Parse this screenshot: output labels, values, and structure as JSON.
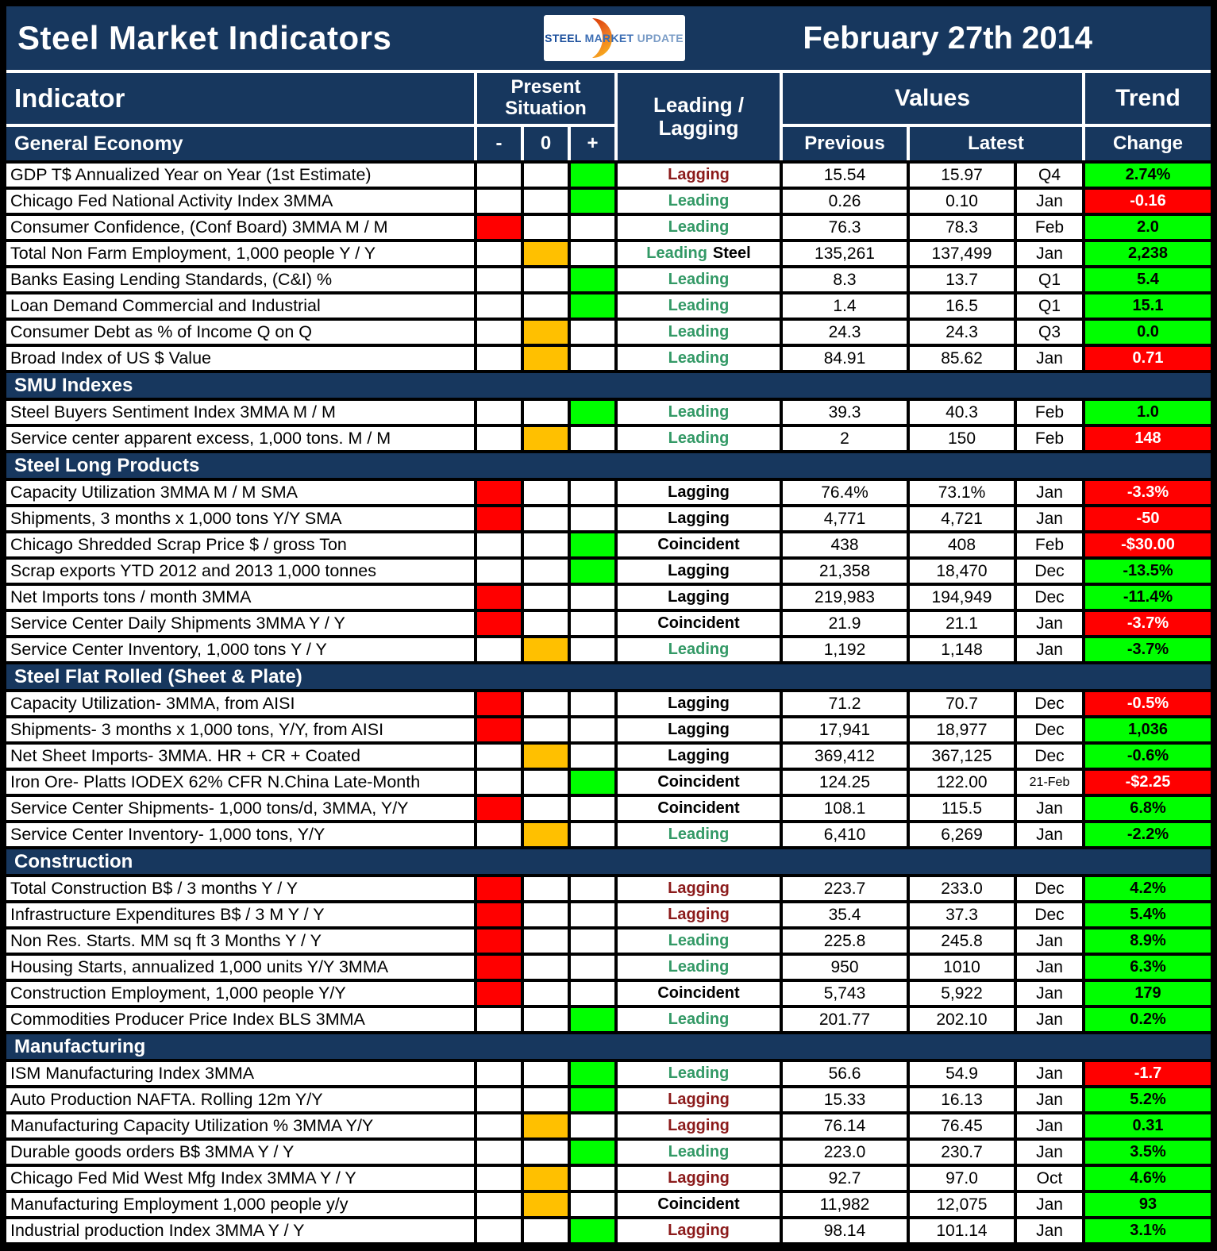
{
  "header": {
    "title": "Steel Market Indicators",
    "date": "February 27th 2014",
    "logo": {
      "steel": "STEEL",
      "market": "MARKET",
      "update": "UPDATE"
    }
  },
  "columns": {
    "indicator": "Indicator",
    "present_situation": "Present Situation",
    "minus": "-",
    "zero": "0",
    "plus": "+",
    "leading_lagging": "Leading / Lagging",
    "values": "Values",
    "previous": "Previous",
    "latest": "Latest",
    "trend": "Trend",
    "change": "Change"
  },
  "colors": {
    "navy": "#17375E",
    "grid": "#000000",
    "positive_cell": "#00FF00",
    "negative_cell": "#FF0000",
    "neutral_cell": "#FFC000",
    "leading_text": "#339966",
    "lagging_text": "#8B1A1A",
    "coincident_text": "#000000"
  },
  "sections": [
    {
      "name": "General Economy",
      "rows": [
        {
          "indicator": "GDP T$ Annualized Year on Year (1st Estimate)",
          "situation": "+",
          "type": "Lagging",
          "type_color": "maroon",
          "previous": "15.54",
          "latest": "15.97",
          "period": "Q4",
          "change": "2.74%",
          "change_color": "green"
        },
        {
          "indicator": "Chicago Fed National Activity Index 3MMA",
          "situation": "+",
          "type": "Leading",
          "type_color": "green",
          "previous": "0.26",
          "latest": "0.10",
          "period": "Jan",
          "change": "-0.16",
          "change_color": "red"
        },
        {
          "indicator": "Consumer Confidence, (Conf Board) 3MMA M / M",
          "situation": "-",
          "type": "Leading",
          "type_color": "green",
          "previous": "76.3",
          "latest": "78.3",
          "period": "Feb",
          "change": "2.0",
          "change_color": "green"
        },
        {
          "indicator": "Total Non Farm Employment, 1,000 people Y / Y",
          "situation": "0",
          "type": "Leading",
          "type_suffix": "Steel",
          "type_color": "green",
          "previous": "135,261",
          "latest": "137,499",
          "period": "Jan",
          "change": "2,238",
          "change_color": "green"
        },
        {
          "indicator": "Banks Easing Lending Standards, (C&I) %",
          "situation": "+",
          "type": "Leading",
          "type_color": "green",
          "previous": "8.3",
          "latest": "13.7",
          "period": "Q1",
          "change": "5.4",
          "change_color": "green"
        },
        {
          "indicator": "Loan Demand Commercial and Industrial",
          "situation": "+",
          "type": "Leading",
          "type_color": "green",
          "previous": "1.4",
          "latest": "16.5",
          "period": "Q1",
          "change": "15.1",
          "change_color": "green"
        },
        {
          "indicator": "Consumer Debt as % of Income Q on Q",
          "situation": "0",
          "type": "Leading",
          "type_color": "green",
          "previous": "24.3",
          "latest": "24.3",
          "period": "Q3",
          "change": "0.0",
          "change_color": "green"
        },
        {
          "indicator": "Broad Index of US $ Value",
          "situation": "0",
          "type": "Leading",
          "type_color": "green",
          "previous": "84.91",
          "latest": "85.62",
          "period": "Jan",
          "change": "0.71",
          "change_color": "red"
        }
      ]
    },
    {
      "name": "SMU Indexes",
      "rows": [
        {
          "indicator": "Steel Buyers Sentiment Index 3MMA M / M",
          "situation": "+",
          "type": "Leading",
          "type_color": "green",
          "previous": "39.3",
          "latest": "40.3",
          "period": "Feb",
          "change": "1.0",
          "change_color": "green"
        },
        {
          "indicator": "Service center apparent excess, 1,000 tons. M / M",
          "situation": "0",
          "type": "Leading",
          "type_color": "green",
          "previous": "2",
          "latest": "150",
          "period": "Feb",
          "change": "148",
          "change_color": "red"
        }
      ]
    },
    {
      "name": "Steel Long Products",
      "rows": [
        {
          "indicator": "Capacity Utilization 3MMA  M / M SMA",
          "situation": "-",
          "type": "Lagging",
          "type_color": "black",
          "previous": "76.4%",
          "latest": "73.1%",
          "period": "Jan",
          "change": "-3.3%",
          "change_color": "red"
        },
        {
          "indicator": "Shipments, 3 months x 1,000 tons Y/Y SMA",
          "situation": "-",
          "type": "Lagging",
          "type_color": "black",
          "previous": "4,771",
          "latest": "4,721",
          "period": "Jan",
          "change": "-50",
          "change_color": "red"
        },
        {
          "indicator": "Chicago Shredded Scrap Price $ / gross Ton",
          "situation": "+",
          "type": "Coincident",
          "type_color": "black",
          "previous": "438",
          "latest": "408",
          "period": "Feb",
          "change": "-$30.00",
          "change_color": "red"
        },
        {
          "indicator": "Scrap exports YTD 2012 and 2013 1,000 tonnes",
          "situation": "+",
          "type": "Lagging",
          "type_color": "black",
          "previous": "21,358",
          "latest": "18,470",
          "period": "Dec",
          "change": "-13.5%",
          "change_color": "green"
        },
        {
          "indicator": "Net Imports tons / month 3MMA",
          "situation": "-",
          "type": "Lagging",
          "type_color": "black",
          "previous": "219,983",
          "latest": "194,949",
          "period": "Dec",
          "change": "-11.4%",
          "change_color": "green"
        },
        {
          "indicator": "Service Center Daily Shipments 3MMA Y / Y",
          "situation": "-",
          "type": "Coincident",
          "type_color": "black",
          "previous": "21.9",
          "latest": "21.1",
          "period": "Jan",
          "change": "-3.7%",
          "change_color": "red"
        },
        {
          "indicator": "Service Center Inventory, 1,000 tons Y / Y",
          "situation": "0",
          "type": "Leading",
          "type_color": "green",
          "previous": "1,192",
          "latest": "1,148",
          "period": "Jan",
          "change": "-3.7%",
          "change_color": "green"
        }
      ]
    },
    {
      "name": "Steel Flat Rolled (Sheet & Plate)",
      "rows": [
        {
          "indicator": "Capacity Utilization- 3MMA, from AISI",
          "situation": "-",
          "type": "Lagging",
          "type_color": "black",
          "previous": "71.2",
          "latest": "70.7",
          "period": "Dec",
          "change": "-0.5%",
          "change_color": "red"
        },
        {
          "indicator": "Shipments- 3 months x 1,000 tons, Y/Y, from AISI",
          "situation": "-",
          "type": "Lagging",
          "type_color": "black",
          "previous": "17,941",
          "latest": "18,977",
          "period": "Dec",
          "change": "1,036",
          "change_color": "green"
        },
        {
          "indicator": "Net Sheet Imports- 3MMA. HR + CR + Coated",
          "situation": "0",
          "type": "Lagging",
          "type_color": "black",
          "previous": "369,412",
          "latest": "367,125",
          "period": "Dec",
          "change": "-0.6%",
          "change_color": "green"
        },
        {
          "indicator": "Iron Ore- Platts IODEX 62% CFR N.China Late-Month",
          "situation": "+",
          "type": "Coincident",
          "type_color": "black",
          "previous": "124.25",
          "latest": "122.00",
          "period": "21-Feb",
          "change": "-$2.25",
          "change_color": "red"
        },
        {
          "indicator": "Service Center Shipments- 1,000 tons/d, 3MMA, Y/Y",
          "situation": "-",
          "type": "Coincident",
          "type_color": "black",
          "previous": "108.1",
          "latest": "115.5",
          "period": "Jan",
          "change": "6.8%",
          "change_color": "green"
        },
        {
          "indicator": "Service Center Inventory- 1,000 tons, Y/Y",
          "situation": "0",
          "type": "Leading",
          "type_color": "green",
          "previous": "6,410",
          "latest": "6,269",
          "period": "Jan",
          "change": "-2.2%",
          "change_color": "green"
        }
      ]
    },
    {
      "name": "Construction",
      "rows": [
        {
          "indicator": "Total Construction B$ /  3 months Y / Y",
          "situation": "-",
          "type": "Lagging",
          "type_color": "maroon",
          "previous": "223.7",
          "latest": "233.0",
          "period": "Dec",
          "change": "4.2%",
          "change_color": "green"
        },
        {
          "indicator": "Infrastructure Expenditures B$ / 3 M    Y / Y",
          "situation": "-",
          "type": "Lagging",
          "type_color": "maroon",
          "previous": "35.4",
          "latest": "37.3",
          "period": "Dec",
          "change": "5.4%",
          "change_color": "green"
        },
        {
          "indicator": "Non Res. Starts. MM sq ft 3 Months   Y / Y",
          "situation": "-",
          "type": "Leading",
          "type_color": "green",
          "previous": "225.8",
          "latest": "245.8",
          "period": "Jan",
          "change": "8.9%",
          "change_color": "green"
        },
        {
          "indicator": "Housing Starts, annualized 1,000 units Y/Y 3MMA",
          "situation": "-",
          "type": "Leading",
          "type_color": "green",
          "previous": "950",
          "latest": "1010",
          "period": "Jan",
          "change": "6.3%",
          "change_color": "green"
        },
        {
          "indicator": "Construction Employment, 1,000 people Y/Y",
          "situation": "-",
          "type": "Coincident",
          "type_color": "black",
          "previous": "5,743",
          "latest": "5,922",
          "period": "Jan",
          "change": "179",
          "change_color": "green"
        },
        {
          "indicator": "Commodities Producer Price Index BLS 3MMA",
          "situation": "+",
          "type": "Leading",
          "type_color": "green",
          "previous": "201.77",
          "latest": "202.10",
          "period": "Jan",
          "change": "0.2%",
          "change_color": "green"
        }
      ]
    },
    {
      "name": "Manufacturing",
      "rows": [
        {
          "indicator": "ISM Manufacturing Index 3MMA",
          "situation": "+",
          "type": "Leading",
          "type_color": "green",
          "previous": "56.6",
          "latest": "54.9",
          "period": "Jan",
          "change": "-1.7",
          "change_color": "red"
        },
        {
          "indicator": "Auto Production NAFTA. Rolling 12m Y/Y",
          "situation": "+",
          "type": "Lagging",
          "type_color": "maroon",
          "previous": "15.33",
          "latest": "16.13",
          "period": "Jan",
          "change": "5.2%",
          "change_color": "green"
        },
        {
          "indicator": "Manufacturing Capacity Utilization % 3MMA Y/Y",
          "situation": "0",
          "type": "Lagging",
          "type_color": "maroon",
          "previous": "76.14",
          "latest": "76.45",
          "period": "Jan",
          "change": "0.31",
          "change_color": "green"
        },
        {
          "indicator": "Durable goods orders B$  3MMA Y / Y",
          "situation": "+",
          "type": "Leading",
          "type_color": "green",
          "previous": "223.0",
          "latest": "230.7",
          "period": "Jan",
          "change": "3.5%",
          "change_color": "green"
        },
        {
          "indicator": "Chicago Fed Mid West Mfg Index 3MMA Y / Y",
          "situation": "0",
          "type": "Lagging",
          "type_color": "maroon",
          "previous": "92.7",
          "latest": "97.0",
          "period": "Oct",
          "change": "4.6%",
          "change_color": "green"
        },
        {
          "indicator": "Manufacturing Employment 1,000 people y/y",
          "situation": "0",
          "type": "Coincident",
          "type_color": "black",
          "previous": "11,982",
          "latest": "12,075",
          "period": "Jan",
          "change": "93",
          "change_color": "green"
        },
        {
          "indicator": "Industrial production Index 3MMA Y / Y",
          "situation": "+",
          "type": "Lagging",
          "type_color": "maroon",
          "previous": "98.14",
          "latest": "101.14",
          "period": "Jan",
          "change": "3.1%",
          "change_color": "green"
        }
      ]
    }
  ]
}
